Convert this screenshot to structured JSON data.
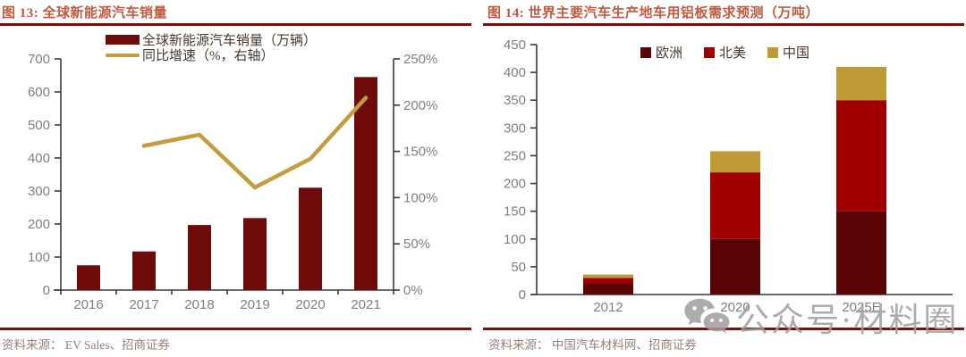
{
  "colors": {
    "title": "#C05A41",
    "rule": "#7A120C",
    "tick_text": "#7F7F7F",
    "axis": "#3A3A3A",
    "legend_text": "#46372E",
    "source_text": "#95827A",
    "watermark": "#9E9E9E"
  },
  "left_chart": {
    "title": "图 13:  全球新能源汽车销量",
    "source": "资料来源： EV Sales、招商证券"
  },
  "right_chart": {
    "title": "图 14:  世界主要汽车生产地车用铝板需求预测（万吨）",
    "source": "资料来源： 中国汽车材料网、招商证券"
  },
  "watermark": {
    "icon": "wechat-icon",
    "label": "公众号·材料圈"
  },
  "chart_data": [
    {
      "type": "bar",
      "subtype": "bar+line-dual-axis",
      "title": "图 13: 全球新能源汽车销量",
      "categories": [
        "2016",
        "2017",
        "2018",
        "2019",
        "2020",
        "2021"
      ],
      "series": [
        {
          "name": "全球新能源汽车销量（万辆）",
          "chart": "bar",
          "axis": "left",
          "color": "#6E0B0B",
          "values": [
            75,
            117,
            197,
            218,
            310,
            645
          ]
        },
        {
          "name": "同比增速（%，右轴）",
          "chart": "line",
          "axis": "right",
          "color": "#C49C3E",
          "values": [
            null,
            156,
            168,
            111,
            142,
            208
          ]
        }
      ],
      "left_axis": {
        "min": 0,
        "max": 700,
        "step": 100,
        "ticks": [
          "0",
          "100",
          "200",
          "300",
          "400",
          "500",
          "600",
          "700"
        ]
      },
      "right_axis": {
        "min": 0,
        "max": 250,
        "step": 50,
        "ticks": [
          "0%",
          "50%",
          "100%",
          "150%",
          "200%",
          "250%"
        ]
      },
      "legend_position": "top",
      "grid": false
    },
    {
      "type": "bar",
      "subtype": "stacked-bar",
      "title": "图 14: 世界主要汽车生产地车用铝板需求预测（万吨）",
      "categories": [
        "2012",
        "2020",
        "2025E"
      ],
      "series": [
        {
          "name": "欧洲",
          "color": "#5A0505",
          "values": [
            20,
            100,
            150
          ]
        },
        {
          "name": "北美",
          "color": "#A00000",
          "values": [
            10,
            120,
            200
          ]
        },
        {
          "name": "中国",
          "color": "#BF9B35",
          "values": [
            6,
            38,
            60
          ]
        }
      ],
      "y_axis": {
        "min": 0,
        "max": 450,
        "step": 50,
        "ticks": [
          "0",
          "50",
          "100",
          "150",
          "200",
          "250",
          "300",
          "350",
          "400",
          "450"
        ]
      },
      "totals": [
        36,
        258,
        410
      ],
      "legend_position": "top",
      "grid": false
    }
  ]
}
